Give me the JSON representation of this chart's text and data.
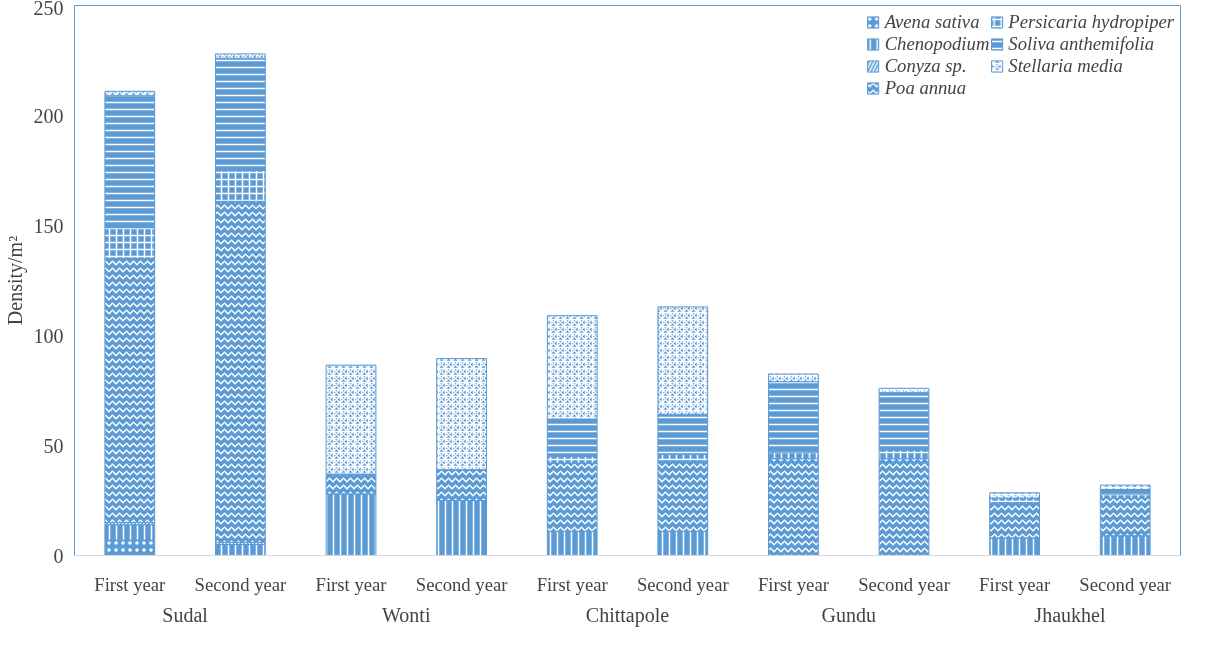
{
  "chart_data": {
    "type": "bar",
    "stacked": true,
    "ylabel": "Density/m²",
    "categories": [
      "First year",
      "Second year",
      "First year",
      "Second year",
      "First year",
      "Second year",
      "First year",
      "Second year",
      "First year",
      "Second year"
    ],
    "annotations": [
      "Sudal",
      "Wonti",
      "Chittapole",
      "Gundu",
      "Jhaukhel"
    ],
    "ylim": [
      0,
      250
    ],
    "yticks": [
      0,
      50,
      100,
      150,
      200,
      250
    ],
    "grid": false,
    "legend": "top right",
    "series": [
      {
        "name": "Avena sativa",
        "color": "#5b9bd5",
        "values": [
          7,
          0,
          0,
          0,
          0,
          0,
          0,
          0,
          0,
          0
        ]
      },
      {
        "name": "Chenopodium",
        "color": "#5b9bd5",
        "values": [
          7,
          5,
          28,
          25,
          11,
          11,
          0,
          0,
          8,
          9
        ]
      },
      {
        "name": "Conyza sp.",
        "color": "#5b9bd5",
        "values": [
          1,
          1,
          0,
          0,
          0,
          0,
          0,
          0,
          0,
          0
        ]
      },
      {
        "name": "Poa annua",
        "color": "#5b9bd5",
        "values": [
          120,
          155,
          9,
          14,
          31,
          32,
          44,
          44,
          16,
          17
        ]
      },
      {
        "name": "Persicaria hydropiper",
        "color": "#5b9bd5",
        "values": [
          14,
          14,
          0,
          0,
          3,
          3,
          3,
          4,
          2,
          2
        ]
      },
      {
        "name": "Soliva anthemifolia",
        "color": "#5b9bd5",
        "values": [
          60,
          51,
          0,
          0,
          17,
          18,
          32,
          26,
          0,
          2
        ]
      },
      {
        "name": "Stellaria media",
        "color": "#5b9bd5",
        "values": [
          2,
          2,
          49.5,
          50.5,
          47,
          49,
          3.5,
          2,
          2.5,
          2
        ]
      }
    ]
  }
}
